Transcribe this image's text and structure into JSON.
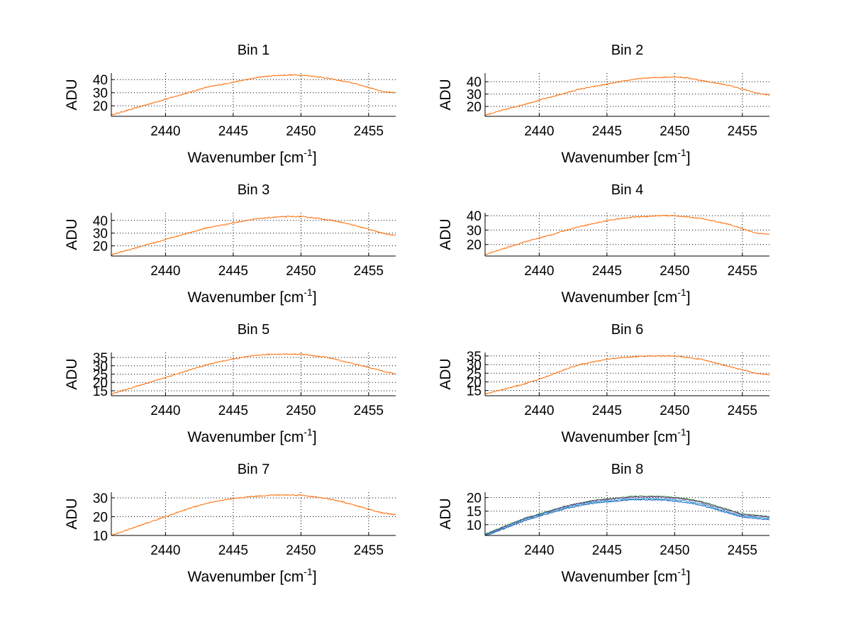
{
  "figure": {
    "background": "#ffffff",
    "series_colors": [
      "#1f5fbf",
      "#2f8f2f",
      "#e01c1c",
      "#7a2fa0",
      "#e8a21a",
      "#17a3c8",
      "#ff6a00"
    ]
  },
  "chart_data": [
    {
      "type": "line",
      "title": "Bin 1",
      "xlabel": "Wavenumber [cm",
      "xlabel_sup": "-1",
      "xlabel_end": "]",
      "ylabel": "ADU",
      "xlim": [
        2436,
        2457
      ],
      "ylim": [
        12,
        45
      ],
      "xticks": [
        2440,
        2445,
        2450,
        2455
      ],
      "yticks": [
        20,
        30,
        40
      ],
      "grid": true,
      "x": [
        2436,
        2437,
        2438,
        2439,
        2440,
        2441,
        2442,
        2443,
        2444,
        2445,
        2446,
        2447,
        2448,
        2449,
        2450,
        2451,
        2452,
        2453,
        2454,
        2455,
        2456,
        2457
      ],
      "series": [
        {
          "values": [
            13,
            16,
            19,
            22,
            25,
            28,
            31,
            34,
            36,
            38,
            40,
            42,
            43,
            43.5,
            43.5,
            42.5,
            41,
            39,
            37,
            34,
            31,
            30
          ]
        }
      ]
    },
    {
      "type": "line",
      "title": "Bin 2",
      "xlabel": "Wavenumber [cm",
      "xlabel_sup": "-1",
      "xlabel_end": "]",
      "ylabel": "ADU",
      "xlim": [
        2436,
        2457
      ],
      "ylim": [
        12,
        47
      ],
      "xticks": [
        2440,
        2445,
        2450,
        2455
      ],
      "yticks": [
        20,
        30,
        40
      ],
      "grid": true,
      "x": [
        2436,
        2437,
        2438,
        2439,
        2440,
        2441,
        2442,
        2443,
        2444,
        2445,
        2446,
        2447,
        2448,
        2449,
        2450,
        2451,
        2452,
        2453,
        2454,
        2455,
        2456,
        2457
      ],
      "series": [
        {
          "values": [
            13,
            16,
            19,
            22,
            25,
            28,
            31,
            34,
            36,
            38,
            40,
            42,
            43,
            43.5,
            44,
            43,
            41,
            39,
            37,
            34,
            31,
            29
          ]
        }
      ]
    },
    {
      "type": "line",
      "title": "Bin 3",
      "xlabel": "Wavenumber [cm",
      "xlabel_sup": "-1",
      "xlabel_end": "]",
      "ylabel": "ADU",
      "xlim": [
        2436,
        2457
      ],
      "ylim": [
        12,
        46
      ],
      "xticks": [
        2440,
        2445,
        2450,
        2455
      ],
      "yticks": [
        20,
        30,
        40
      ],
      "grid": true,
      "x": [
        2436,
        2437,
        2438,
        2439,
        2440,
        2441,
        2442,
        2443,
        2444,
        2445,
        2446,
        2447,
        2448,
        2449,
        2450,
        2451,
        2452,
        2453,
        2454,
        2455,
        2456,
        2457
      ],
      "series": [
        {
          "values": [
            13,
            16,
            19,
            22,
            25,
            28,
            31,
            34,
            36,
            38,
            40,
            41.5,
            42.5,
            43,
            43,
            42,
            40.5,
            38.5,
            36,
            33,
            30,
            28
          ]
        }
      ]
    },
    {
      "type": "line",
      "title": "Bin 4",
      "xlabel": "Wavenumber [cm",
      "xlabel_sup": "-1",
      "xlabel_end": "]",
      "ylabel": "ADU",
      "xlim": [
        2436,
        2457
      ],
      "ylim": [
        12,
        42
      ],
      "xticks": [
        2440,
        2445,
        2450,
        2455
      ],
      "yticks": [
        20,
        30,
        40
      ],
      "grid": true,
      "x": [
        2436,
        2437,
        2438,
        2439,
        2440,
        2441,
        2442,
        2443,
        2444,
        2445,
        2446,
        2447,
        2448,
        2449,
        2450,
        2451,
        2452,
        2453,
        2454,
        2455,
        2456,
        2457
      ],
      "series": [
        {
          "values": [
            13,
            16,
            19,
            22,
            24.5,
            27,
            30,
            32.5,
            34.5,
            36.5,
            38,
            39,
            39.5,
            40,
            40,
            39,
            38,
            36,
            34,
            31,
            28,
            27
          ]
        }
      ]
    },
    {
      "type": "line",
      "title": "Bin 5",
      "xlabel": "Wavenumber [cm",
      "xlabel_sup": "-1",
      "xlabel_end": "]",
      "ylabel": "ADU",
      "xlim": [
        2436,
        2457
      ],
      "ylim": [
        12,
        38
      ],
      "xticks": [
        2440,
        2445,
        2450,
        2455
      ],
      "yticks": [
        15,
        20,
        25,
        30,
        35
      ],
      "grid": true,
      "x": [
        2436,
        2437,
        2438,
        2439,
        2440,
        2441,
        2442,
        2443,
        2444,
        2445,
        2446,
        2447,
        2448,
        2449,
        2450,
        2451,
        2452,
        2453,
        2454,
        2455,
        2456,
        2457
      ],
      "series": [
        {
          "values": [
            13,
            15.5,
            18,
            20.5,
            23,
            25.5,
            28,
            30.5,
            32.5,
            34,
            35.5,
            36.5,
            37,
            37,
            37,
            36,
            35,
            33,
            31,
            29,
            27,
            25
          ]
        }
      ]
    },
    {
      "type": "line",
      "title": "Bin 6",
      "xlabel": "Wavenumber [cm",
      "xlabel_sup": "-1",
      "xlabel_end": "]",
      "ylabel": "ADU",
      "xlim": [
        2436,
        2457
      ],
      "ylim": [
        12,
        37
      ],
      "xticks": [
        2440,
        2445,
        2450,
        2455
      ],
      "yticks": [
        15,
        20,
        25,
        30,
        35
      ],
      "grid": true,
      "x": [
        2436,
        2437,
        2438,
        2439,
        2440,
        2441,
        2442,
        2443,
        2444,
        2445,
        2446,
        2447,
        2448,
        2449,
        2450,
        2451,
        2452,
        2453,
        2454,
        2455,
        2456,
        2457
      ],
      "series": [
        {
          "values": [
            13,
            15,
            17,
            19,
            21.5,
            24.5,
            27.5,
            30,
            31.5,
            33,
            34,
            34.5,
            35,
            35,
            35,
            34,
            33,
            31,
            29,
            27,
            25,
            24
          ]
        }
      ]
    },
    {
      "type": "line",
      "title": "Bin 7",
      "xlabel": "Wavenumber [cm",
      "xlabel_sup": "-1",
      "xlabel_end": "]",
      "ylabel": "ADU",
      "xlim": [
        2436,
        2457
      ],
      "ylim": [
        10,
        33
      ],
      "xticks": [
        2440,
        2445,
        2450,
        2455
      ],
      "yticks": [
        10,
        20,
        30
      ],
      "grid": true,
      "x": [
        2436,
        2437,
        2438,
        2439,
        2440,
        2441,
        2442,
        2443,
        2444,
        2445,
        2446,
        2447,
        2448,
        2449,
        2450,
        2451,
        2452,
        2453,
        2454,
        2455,
        2456,
        2457
      ],
      "series": [
        {
          "values": [
            10,
            12.5,
            15,
            17.5,
            20,
            22.5,
            25,
            27,
            28.5,
            29.5,
            30.5,
            31,
            31.5,
            31.5,
            31.5,
            30.5,
            29.5,
            28,
            26,
            24,
            22,
            21
          ]
        }
      ]
    },
    {
      "type": "line",
      "title": "Bin 8",
      "xlabel": "Wavenumber [cm",
      "xlabel_sup": "-1",
      "xlabel_end": "]",
      "ylabel": "ADU",
      "xlim": [
        2436,
        2457
      ],
      "ylim": [
        6,
        22
      ],
      "xticks": [
        2440,
        2445,
        2450,
        2455
      ],
      "yticks": [
        10,
        15,
        20
      ],
      "grid": true,
      "x": [
        2436,
        2437,
        2438,
        2439,
        2440,
        2441,
        2442,
        2443,
        2444,
        2445,
        2446,
        2447,
        2448,
        2449,
        2450,
        2451,
        2452,
        2453,
        2454,
        2455,
        2456,
        2457
      ],
      "series": [
        {
          "values": [
            6.5,
            8.5,
            10.5,
            12.5,
            14,
            15.5,
            17,
            18,
            19,
            19.5,
            20,
            20.5,
            20.5,
            20.5,
            20,
            19.5,
            18.5,
            17,
            15.5,
            14,
            13.5,
            13
          ]
        },
        {
          "values": [
            6.3,
            8.3,
            10.3,
            12.3,
            13.8,
            15.3,
            16.8,
            17.8,
            18.8,
            19.3,
            19.8,
            20.2,
            20.2,
            20.2,
            19.8,
            19.2,
            18.2,
            16.7,
            15.2,
            13.7,
            13.2,
            12.7
          ]
        },
        {
          "values": [
            6.0,
            8.0,
            10.0,
            12.0,
            13.5,
            15.0,
            16.4,
            17.4,
            18.3,
            18.8,
            19.3,
            19.6,
            19.6,
            19.6,
            19.2,
            18.6,
            17.6,
            16.2,
            14.7,
            13.2,
            12.7,
            12.2
          ]
        },
        {
          "values": [
            5.8,
            7.7,
            9.7,
            11.6,
            13.1,
            14.6,
            16.0,
            17.0,
            17.9,
            18.4,
            18.9,
            19.2,
            19.2,
            19.1,
            18.7,
            18.1,
            17.1,
            15.7,
            14.2,
            12.8,
            12.3,
            11.8
          ]
        }
      ]
    }
  ]
}
